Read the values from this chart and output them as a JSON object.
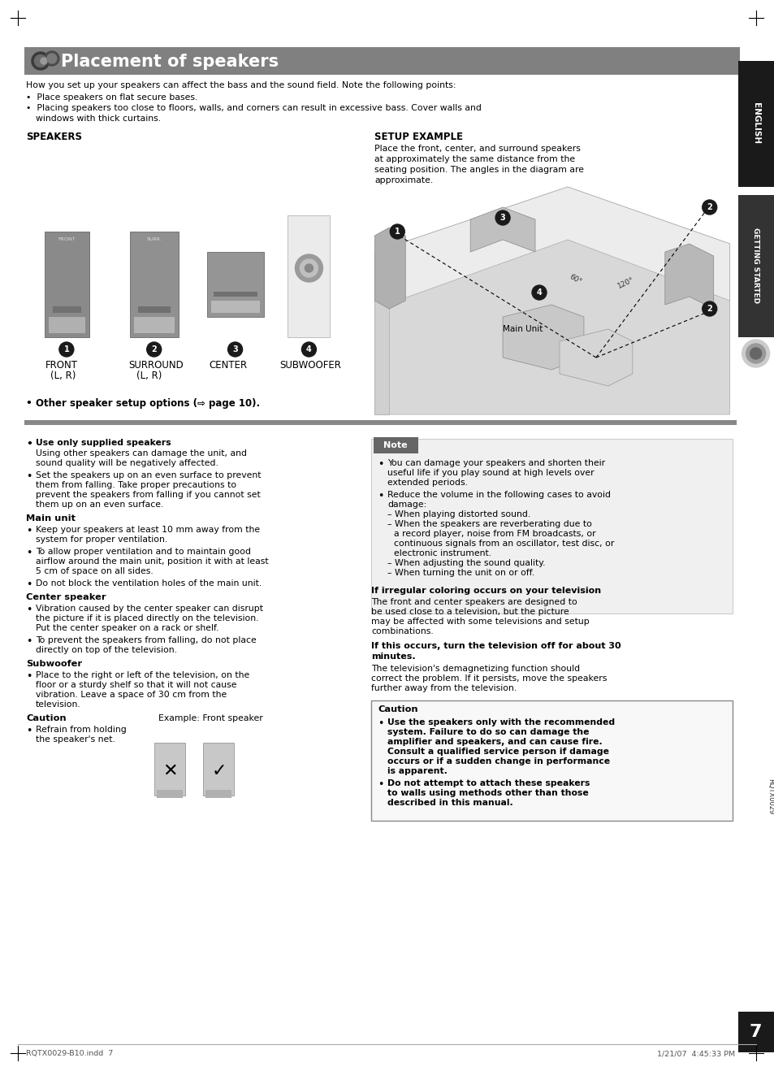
{
  "page_bg": "#ffffff",
  "header_bg": "#808080",
  "header_text": "Placement of speakers",
  "header_text_color": "#ffffff",
  "intro_text": "How you set up your speakers can affect the bass and the sound field. Note the following points:",
  "bullet1": "Place speakers on flat secure bases.",
  "bullet2_1": "Placing speakers too close to floors, walls, and corners can result in excessive bass. Cover walls and",
  "bullet2_2": "windows with thick curtains.",
  "speakers_label": "SPEAKERS",
  "setup_label": "SETUP EXAMPLE",
  "setup_desc_1": "Place the front, center, and surround speakers",
  "setup_desc_2": "at approximately the same distance from the",
  "setup_desc_3": "seating position. The angles in the diagram are",
  "setup_desc_4": "approximate.",
  "other_options": "Other speaker setup options (⇨ page 10).",
  "footer_left": "RQTX0029-B10.indd  7",
  "footer_right": "1/21/07  4:45:33 PM",
  "page_number": "7",
  "side_code": "RQTX0029",
  "sep_line_color": "#888888",
  "note_header_bg": "#666666",
  "caution2_border": "#888888",
  "main_unit_text": "Main Unit"
}
